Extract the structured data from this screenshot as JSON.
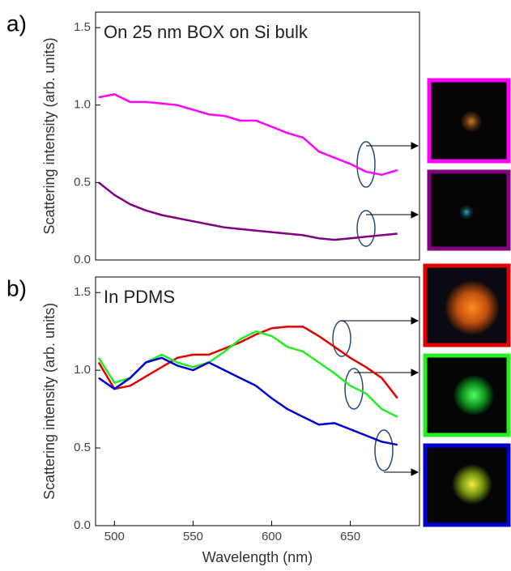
{
  "chart_data": [
    {
      "type": "line",
      "panel_label": "a)",
      "title": "On 25 nm BOX on Si bulk",
      "ylabel": "Scattering intensity (arb. units)",
      "x": [
        490,
        500,
        510,
        520,
        530,
        540,
        550,
        560,
        570,
        580,
        590,
        600,
        610,
        620,
        630,
        640,
        650,
        660,
        670,
        680
      ],
      "series": [
        {
          "color": "#ff00ff",
          "values": [
            1.05,
            1.07,
            1.02,
            1.02,
            1.01,
            1.0,
            0.97,
            0.94,
            0.93,
            0.9,
            0.9,
            0.86,
            0.82,
            0.79,
            0.7,
            0.66,
            0.62,
            0.57,
            0.55,
            0.58
          ]
        },
        {
          "color": "#800080",
          "values": [
            0.5,
            0.42,
            0.36,
            0.32,
            0.29,
            0.27,
            0.25,
            0.23,
            0.21,
            0.2,
            0.19,
            0.18,
            0.17,
            0.16,
            0.14,
            0.13,
            0.14,
            0.15,
            0.16,
            0.17
          ]
        }
      ],
      "xlim": [
        488,
        694
      ],
      "ylim": [
        0,
        1.6
      ],
      "yticks": [
        {
          "value": 0,
          "label": "0.0"
        },
        0.5,
        {
          "value": 1,
          "label": "1.0"
        },
        1.5
      ]
    },
    {
      "type": "line",
      "panel_label": "b)",
      "title": "In PDMS",
      "xlabel": "Wavelength (nm)",
      "ylabel": "Scattering intensity (arb. units)",
      "x": [
        490,
        500,
        510,
        520,
        530,
        540,
        550,
        560,
        570,
        580,
        590,
        600,
        610,
        620,
        630,
        640,
        650,
        660,
        670,
        680
      ],
      "series": [
        {
          "color": "#e00000",
          "values": [
            1.05,
            0.88,
            0.9,
            0.96,
            1.02,
            1.08,
            1.1,
            1.1,
            1.14,
            1.18,
            1.23,
            1.27,
            1.28,
            1.28,
            1.22,
            1.15,
            1.08,
            1.02,
            0.95,
            0.82
          ]
        },
        {
          "color": "#22ee22",
          "values": [
            1.08,
            0.92,
            0.95,
            1.05,
            1.1,
            1.05,
            1.02,
            1.05,
            1.12,
            1.2,
            1.25,
            1.22,
            1.15,
            1.12,
            1.05,
            0.98,
            0.9,
            0.85,
            0.75,
            0.7
          ]
        },
        {
          "color": "#0000d0",
          "values": [
            0.95,
            0.88,
            0.95,
            1.05,
            1.08,
            1.03,
            1.0,
            1.05,
            1.0,
            0.95,
            0.9,
            0.82,
            0.75,
            0.7,
            0.65,
            0.66,
            0.62,
            0.58,
            0.54,
            0.52
          ]
        }
      ],
      "xlim": [
        488,
        694
      ],
      "ylim": [
        0,
        1.6
      ],
      "xticks": [
        500,
        550,
        600,
        650
      ],
      "yticks": [
        {
          "value": 0,
          "label": "0.0"
        },
        0.5,
        {
          "value": 1,
          "label": "1.0"
        },
        1.5
      ]
    }
  ]
}
